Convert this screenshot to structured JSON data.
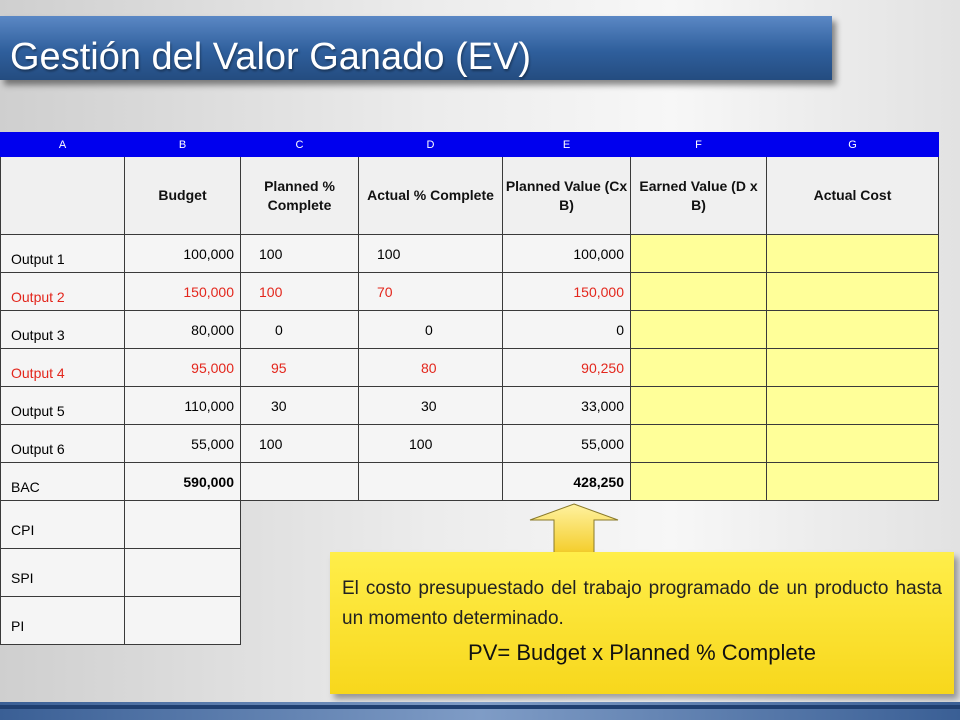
{
  "title": "Gestión del Valor Ganado (EV)",
  "table": {
    "letters": [
      "A",
      "B",
      "C",
      "D",
      "E",
      "F",
      "G"
    ],
    "headers": [
      "",
      "Budget",
      "Planned % Complete",
      "Actual % Complete",
      "Planned Value (Cx B)",
      "Earned Value (D x B)",
      "Actual Cost"
    ],
    "rows": [
      {
        "label": "Output 1",
        "budget": "100,000",
        "planned_pct": "100",
        "actual_pct": "100",
        "pv": "100,000",
        "highlight": false
      },
      {
        "label": "Output 2",
        "budget": "150,000",
        "planned_pct": "100",
        "actual_pct": "70",
        "pv": "150,000",
        "highlight": true
      },
      {
        "label": "Output 3",
        "budget": "80,000",
        "planned_pct": "0",
        "actual_pct": "0",
        "pv": "0",
        "highlight": false
      },
      {
        "label": "Output 4",
        "budget": "95,000",
        "planned_pct": "95",
        "actual_pct": "80",
        "pv": "90,250",
        "highlight": true
      },
      {
        "label": "Output 5",
        "budget": "110,000",
        "planned_pct": "30",
        "actual_pct": "30",
        "pv": "33,000",
        "highlight": false
      },
      {
        "label": "Output 6",
        "budget": "55,000",
        "planned_pct": "100",
        "actual_pct": "100",
        "pv": "55,000",
        "highlight": false
      }
    ],
    "bac": {
      "label": "BAC",
      "budget": "590,000",
      "pv": "428,250"
    },
    "metrics": [
      "CPI",
      "SPI",
      "PI"
    ]
  },
  "callout": {
    "text": "El costo presupuestado del trabajo programado de un producto hasta un momento determinado.",
    "formula": "PV= Budget x  Planned % Complete"
  },
  "colors": {
    "title_bar": "#2f5f9c",
    "letter_row": "#0000ee",
    "yellow_cell": "#ffff99",
    "highlight_text": "#e3261c",
    "callout": "#f7d71c"
  }
}
